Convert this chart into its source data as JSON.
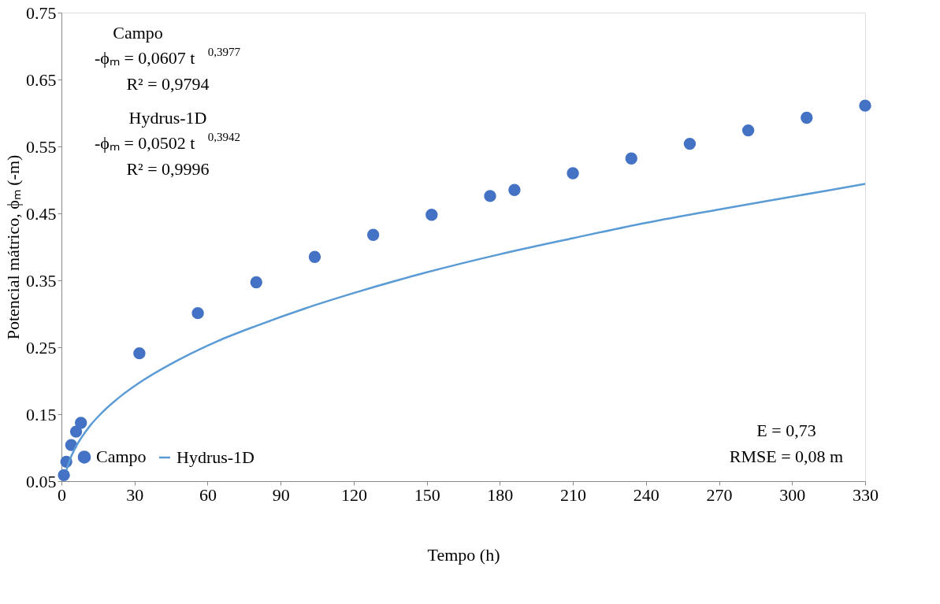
{
  "chart_data": {
    "type": "scatter",
    "xlabel": "Tempo (h)",
    "ylabel": "Potencial mátrico, ϕₘ (-m)",
    "xlim": [
      0,
      330
    ],
    "xticks": [
      0,
      30,
      60,
      90,
      120,
      150,
      180,
      210,
      240,
      270,
      300,
      330
    ],
    "ylim": [
      0.05,
      0.75
    ],
    "yticks": [
      0.05,
      0.15,
      0.25,
      0.35,
      0.45,
      0.55,
      0.65,
      0.75
    ],
    "grid": false,
    "legend": "bottom left",
    "series": [
      {
        "name": "Campo",
        "type": "scatter",
        "color": "#4472c4",
        "marker": "circle",
        "x": [
          1,
          2,
          4,
          6,
          8,
          32,
          56,
          80,
          104,
          128,
          152,
          176,
          186,
          210,
          234,
          258,
          282,
          306,
          330
        ],
        "values": [
          0.059,
          0.079,
          0.104,
          0.124,
          0.137,
          0.241,
          0.301,
          0.347,
          0.385,
          0.418,
          0.448,
          0.476,
          0.485,
          0.51,
          0.532,
          0.554,
          0.574,
          0.593,
          0.611
        ]
      },
      {
        "name": "Hydrus-1D",
        "type": "line",
        "color": "#5b9bd5",
        "line_style": "solid",
        "marker": "none",
        "x": [
          2,
          4,
          6,
          8,
          12,
          16,
          24,
          32,
          48,
          64,
          80,
          100,
          120,
          150,
          180,
          210,
          240,
          270,
          300,
          330
        ],
        "values": [
          0.066,
          0.087,
          0.102,
          0.114,
          0.134,
          0.15,
          0.176,
          0.197,
          0.231,
          0.259,
          0.282,
          0.308,
          0.331,
          0.362,
          0.389,
          0.413,
          0.436,
          0.456,
          0.475,
          0.494
        ]
      }
    ],
    "annotations": [
      "Campo",
      "-ϕₘ = 0,0607 t$^{0,3977}$",
      "R² = 0,9794",
      "Hydrus-1D",
      "-ϕₘ = 0,0502 t$^{0,3942}$",
      "R² = 0,9996",
      "E = 0,73",
      "RMSE =  0,08 m"
    ]
  }
}
